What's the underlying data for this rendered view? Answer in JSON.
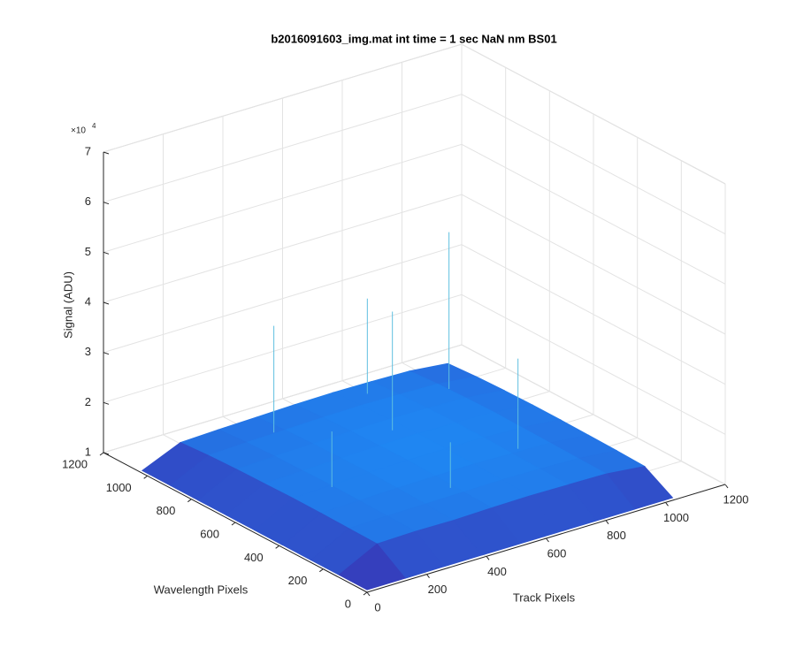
{
  "chart_data": {
    "type": "surface3d",
    "title": "b2016091603_img.mat int time = 1 sec  NaN nm BS01",
    "xlabel": "Track Pixels",
    "ylabel": "Wavelength Pixels",
    "zlabel": "Signal (ADU)",
    "z_multiplier": "×10",
    "z_multiplier_exponent": "4",
    "xlim": [
      0,
      1200
    ],
    "ylim": [
      0,
      1200
    ],
    "zlim": [
      1,
      7
    ],
    "xticks": [
      0,
      200,
      400,
      600,
      800,
      1000,
      1200
    ],
    "yticks": [
      0,
      200,
      400,
      600,
      800,
      1000,
      1200
    ],
    "zticks": [
      1,
      2,
      3,
      4,
      5,
      6,
      7
    ],
    "grid": true,
    "color_low": "#3a2db0",
    "color_high": "#1f86f2",
    "spike_color": "#5fbfe0",
    "x": [
      0,
      128,
      256,
      384,
      512,
      640,
      768,
      896,
      1024
    ],
    "y": [
      0,
      128,
      256,
      384,
      512,
      640,
      768,
      896,
      1024
    ],
    "z": [
      [
        1.05,
        1.05,
        1.05,
        1.05,
        1.05,
        1.05,
        1.05,
        1.05,
        1.05
      ],
      [
        1.05,
        1.44,
        1.46,
        1.45,
        1.47,
        1.48,
        1.47,
        1.46,
        1.38
      ],
      [
        1.05,
        1.45,
        1.47,
        1.48,
        1.49,
        1.5,
        1.49,
        1.47,
        1.4
      ],
      [
        1.05,
        1.46,
        1.48,
        1.5,
        1.51,
        1.52,
        1.5,
        1.48,
        1.41
      ],
      [
        1.05,
        1.46,
        1.49,
        1.51,
        1.53,
        1.53,
        1.52,
        1.49,
        1.42
      ],
      [
        1.05,
        1.45,
        1.48,
        1.5,
        1.52,
        1.53,
        1.52,
        1.5,
        1.42
      ],
      [
        1.05,
        1.44,
        1.47,
        1.49,
        1.51,
        1.52,
        1.51,
        1.49,
        1.41
      ],
      [
        1.05,
        1.42,
        1.45,
        1.47,
        1.49,
        1.5,
        1.49,
        1.47,
        1.39
      ],
      [
        1.05,
        1.38,
        1.41,
        1.43,
        1.45,
        1.46,
        1.45,
        1.43,
        1.35
      ]
    ],
    "spikes": {
      "x": [
        600,
        350,
        800,
        250,
        900,
        500,
        700
      ],
      "y": [
        700,
        900,
        400,
        500,
        850,
        300,
        950
      ],
      "z": [
        3.9,
        3.6,
        3.3,
        2.6,
        4.6,
        2.4,
        3.4
      ]
    }
  }
}
